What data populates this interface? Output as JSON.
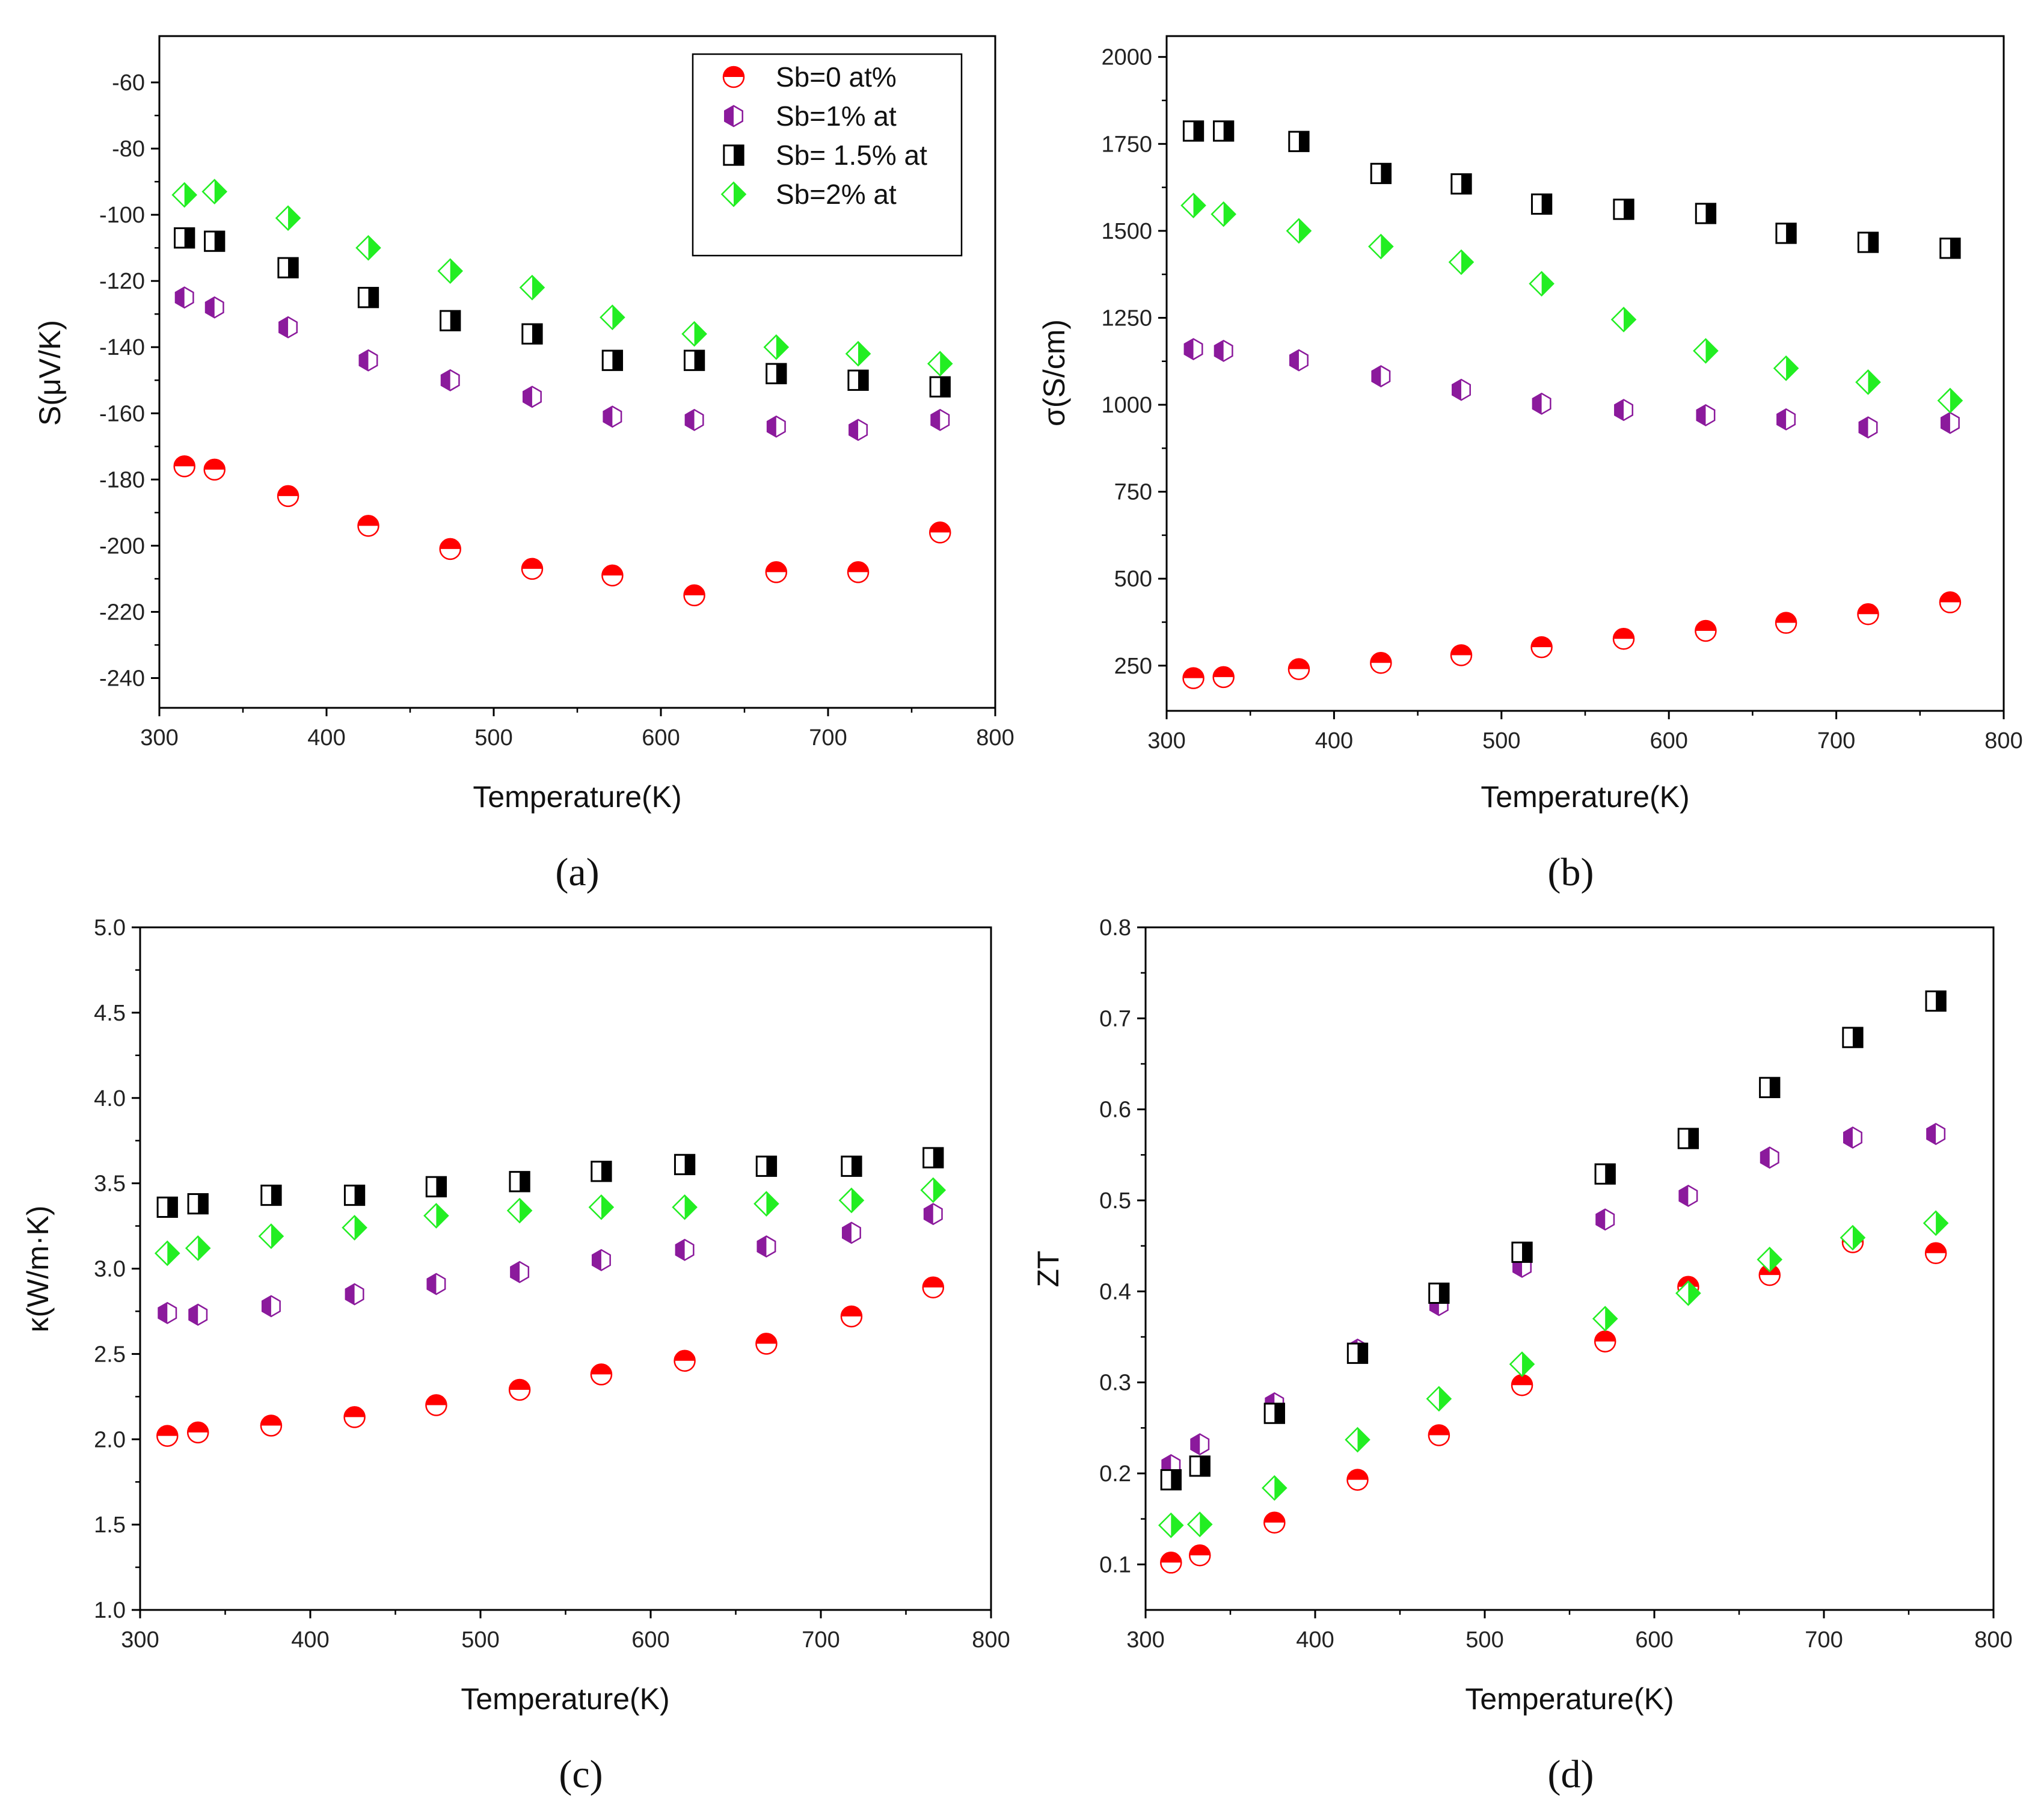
{
  "colors": {
    "circle_red": "#ff0000",
    "hex_purple": "#8b1a9c",
    "square_black": "#000000",
    "diamond_green": "#22ee22",
    "axis": "#000000",
    "text": "#111111"
  },
  "legend": {
    "items": [
      {
        "label": "Sb=0 at%",
        "marker": "circle",
        "color": "#ff0000"
      },
      {
        "label": "Sb=1% at",
        "marker": "hexagon",
        "color": "#8b1a9c"
      },
      {
        "label": "Sb= 1.5% at",
        "marker": "square",
        "color": "#000000"
      },
      {
        "label": "Sb=2% at",
        "marker": "diamond",
        "color": "#22ee22"
      }
    ]
  },
  "chart_data": [
    {
      "id": "a",
      "type": "scatter",
      "panel_label": "(a)",
      "xlabel": "Temperature(K)",
      "ylabel": "S(μV/K)",
      "xlim": [
        300,
        800
      ],
      "ylim": [
        -249,
        -46
      ],
      "xticks": [
        300,
        400,
        500,
        600,
        700,
        800
      ],
      "yticks": [
        -60,
        -80,
        -100,
        -120,
        -140,
        -160,
        -180,
        -200,
        -220,
        -240
      ],
      "legend_position": "top-right",
      "series": [
        {
          "name": "Sb=0 at%",
          "marker": "circle",
          "x": [
            315,
            333,
            377,
            425,
            474,
            523,
            571,
            620,
            669,
            718,
            767
          ],
          "y": [
            -176,
            -177,
            -185,
            -194,
            -201,
            -207,
            -209,
            -215,
            -208,
            -208,
            -196
          ]
        },
        {
          "name": "Sb=1% at",
          "marker": "hexagon",
          "x": [
            315,
            333,
            377,
            425,
            474,
            523,
            571,
            620,
            669,
            718,
            767
          ],
          "y": [
            -125,
            -128,
            -134,
            -144,
            -150,
            -155,
            -161,
            -162,
            -164,
            -165,
            -162
          ]
        },
        {
          "name": "Sb= 1.5% at",
          "marker": "square",
          "x": [
            315,
            333,
            377,
            425,
            474,
            523,
            571,
            620,
            669,
            718,
            767
          ],
          "y": [
            -107,
            -108,
            -116,
            -125,
            -132,
            -136,
            -144,
            -144,
            -148,
            -150,
            -152
          ]
        },
        {
          "name": "Sb=2% at",
          "marker": "diamond",
          "x": [
            315,
            333,
            377,
            425,
            474,
            523,
            571,
            620,
            669,
            718,
            767
          ],
          "y": [
            -94,
            -93,
            -101,
            -110,
            -117,
            -122,
            -131,
            -136,
            -140,
            -142,
            -145
          ]
        }
      ]
    },
    {
      "id": "b",
      "type": "scatter",
      "panel_label": "(b)",
      "xlabel": "Temperature(K)",
      "ylabel": "σ(S/cm)",
      "xlim": [
        300,
        800
      ],
      "ylim": [
        120,
        2060
      ],
      "xticks": [
        300,
        400,
        500,
        600,
        700,
        800
      ],
      "yticks": [
        250,
        500,
        750,
        1000,
        1250,
        1500,
        1750,
        2000
      ],
      "series": [
        {
          "name": "Sb=0 at%",
          "marker": "circle",
          "x": [
            316,
            334,
            379,
            428,
            476,
            524,
            573,
            622,
            670,
            719,
            768
          ],
          "y": [
            214,
            217,
            240,
            258,
            280,
            303,
            327,
            350,
            373,
            398,
            432
          ]
        },
        {
          "name": "Sb=1% at",
          "marker": "hexagon",
          "x": [
            316,
            334,
            379,
            428,
            476,
            524,
            573,
            622,
            670,
            719,
            768
          ],
          "y": [
            1160,
            1155,
            1128,
            1082,
            1043,
            1003,
            985,
            970,
            958,
            935,
            948
          ]
        },
        {
          "name": "Sb= 1.5% at",
          "marker": "square",
          "x": [
            316,
            334,
            379,
            428,
            476,
            524,
            573,
            622,
            670,
            719,
            768
          ],
          "y": [
            1787,
            1787,
            1757,
            1665,
            1635,
            1577,
            1562,
            1550,
            1493,
            1467,
            1450
          ]
        },
        {
          "name": "Sb=2% at",
          "marker": "diamond",
          "x": [
            316,
            334,
            379,
            428,
            476,
            524,
            573,
            622,
            670,
            719,
            768
          ],
          "y": [
            1573,
            1548,
            1500,
            1455,
            1410,
            1348,
            1245,
            1155,
            1105,
            1065,
            1012
          ]
        }
      ]
    },
    {
      "id": "c",
      "type": "scatter",
      "panel_label": "(c)",
      "xlabel": "Temperature(K)",
      "ylabel": "κ(W/m·K)",
      "xlim": [
        300,
        800
      ],
      "ylim": [
        1.0,
        5.0
      ],
      "xticks": [
        300,
        400,
        500,
        600,
        700,
        800
      ],
      "yticks": [
        1.0,
        1.5,
        2.0,
        2.5,
        3.0,
        3.5,
        4.0,
        4.5,
        5.0
      ],
      "series": [
        {
          "name": "Sb=0 at%",
          "marker": "circle",
          "x": [
            316,
            334,
            377,
            426,
            474,
            523,
            571,
            620,
            668,
            718,
            766
          ],
          "y": [
            2.02,
            2.04,
            2.08,
            2.13,
            2.2,
            2.29,
            2.38,
            2.46,
            2.56,
            2.72,
            2.89
          ]
        },
        {
          "name": "Sb=1% at",
          "marker": "hexagon",
          "x": [
            316,
            334,
            377,
            426,
            474,
            523,
            571,
            620,
            668,
            718,
            766
          ],
          "y": [
            2.74,
            2.73,
            2.78,
            2.85,
            2.91,
            2.98,
            3.05,
            3.11,
            3.13,
            3.21,
            3.32
          ]
        },
        {
          "name": "Sb= 1.5% at",
          "marker": "square",
          "x": [
            316,
            334,
            377,
            426,
            474,
            523,
            571,
            620,
            668,
            718,
            766
          ],
          "y": [
            3.36,
            3.38,
            3.43,
            3.43,
            3.48,
            3.51,
            3.57,
            3.61,
            3.6,
            3.6,
            3.65
          ]
        },
        {
          "name": "Sb=2% at",
          "marker": "diamond",
          "x": [
            316,
            334,
            377,
            426,
            474,
            523,
            571,
            620,
            668,
            718,
            766
          ],
          "y": [
            3.09,
            3.12,
            3.19,
            3.24,
            3.31,
            3.34,
            3.36,
            3.36,
            3.38,
            3.4,
            3.46
          ]
        }
      ]
    },
    {
      "id": "d",
      "type": "scatter",
      "panel_label": "(d)",
      "xlabel": "Temperature(K)",
      "ylabel": "ZT",
      "xlim": [
        300,
        800
      ],
      "ylim": [
        0.05,
        0.8
      ],
      "xticks": [
        300,
        400,
        500,
        600,
        700,
        800
      ],
      "yticks": [
        0.1,
        0.2,
        0.3,
        0.4,
        0.5,
        0.6,
        0.7,
        0.8
      ],
      "series": [
        {
          "name": "Sb=0 at%",
          "marker": "circle",
          "x": [
            315,
            332,
            376,
            425,
            473,
            522,
            571,
            620,
            668,
            717,
            766
          ],
          "y": [
            0.102,
            0.11,
            0.146,
            0.193,
            0.242,
            0.297,
            0.345,
            0.405,
            0.418,
            0.454,
            0.442
          ]
        },
        {
          "name": "Sb=1% at",
          "marker": "hexagon",
          "x": [
            315,
            332,
            376,
            425,
            473,
            522,
            571,
            620,
            668,
            717,
            766
          ],
          "y": [
            0.209,
            0.232,
            0.277,
            0.336,
            0.385,
            0.427,
            0.479,
            0.505,
            0.547,
            0.569,
            0.573
          ]
        },
        {
          "name": "Sb= 1.5% at",
          "marker": "square",
          "x": [
            315,
            332,
            376,
            425,
            473,
            522,
            571,
            620,
            668,
            717,
            766
          ],
          "y": [
            0.193,
            0.208,
            0.266,
            0.332,
            0.398,
            0.443,
            0.529,
            0.568,
            0.624,
            0.679,
            0.719
          ]
        },
        {
          "name": "Sb=2% at",
          "marker": "diamond",
          "x": [
            315,
            332,
            376,
            425,
            473,
            522,
            571,
            620,
            668,
            717,
            766
          ],
          "y": [
            0.143,
            0.144,
            0.184,
            0.237,
            0.282,
            0.32,
            0.37,
            0.398,
            0.435,
            0.459,
            0.475
          ]
        }
      ]
    }
  ]
}
